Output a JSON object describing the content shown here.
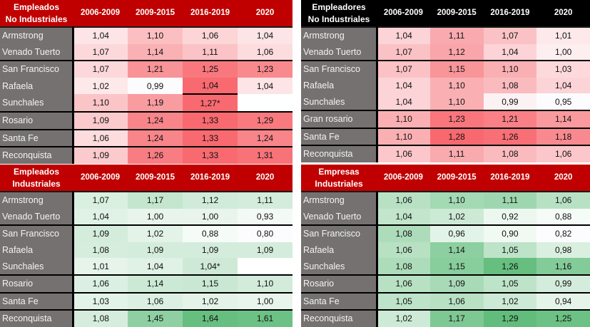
{
  "colors": {
    "header_red": "#c00000",
    "header_black": "#000000",
    "label_bg": "#767171"
  },
  "tables": [
    {
      "title_line1": "Empleados",
      "title_line2": "No Industriales",
      "columns": [
        "2006-2009",
        "2009-2015",
        "2016-2019",
        "2020"
      ],
      "rows": [
        {
          "name": "Armstrong",
          "values": [
            "1,04",
            "1,10",
            "1,06",
            "1,04"
          ],
          "bg": [
            "#fde4e6",
            "#fbbfc2",
            "#fcd5d7",
            "#fde4e6"
          ]
        },
        {
          "name": "Venado Tuerto",
          "values": [
            "1,07",
            "1,14",
            "1,11",
            "1,06"
          ],
          "bg": [
            "#fdd8db",
            "#fab1b4",
            "#fbc3c6",
            "#fddcde"
          ]
        },
        {
          "name": "San Francisco",
          "values": [
            "1,07",
            "1,21",
            "1,25",
            "1,23"
          ],
          "bg": [
            "#fdd8db",
            "#f89397",
            "#f8787d",
            "#f88a8e"
          ]
        },
        {
          "name": "Rafaela",
          "values": [
            "1,02",
            "0,99",
            "1,04",
            "1,04"
          ],
          "bg": [
            "#fee9ea",
            "#fcfcff",
            "#f86a70",
            "#fde4e6"
          ]
        },
        {
          "name": "Sunchales",
          "values": [
            "1,10",
            "1,19",
            "1,27*",
            ""
          ],
          "bg": [
            "#fbc5c8",
            "#f99ca0",
            "#f86a70",
            "#ffffff"
          ]
        },
        {
          "name": "Rosario",
          "values": [
            "1,09",
            "1,24",
            "1,33",
            "1,29"
          ],
          "bg": [
            "#fbcacd",
            "#f8858a",
            "#f86a70",
            "#f87a7f"
          ]
        },
        {
          "name": "Santa Fe",
          "values": [
            "1,06",
            "1,24",
            "1,33",
            "1,24"
          ],
          "bg": [
            "#fddcde",
            "#f8858a",
            "#f86a70",
            "#f8858a"
          ]
        },
        {
          "name": "Reconquista",
          "values": [
            "1,09",
            "1,26",
            "1,33",
            "1,31"
          ],
          "bg": [
            "#fbcacd",
            "#f87d82",
            "#f86a70",
            "#f87378"
          ]
        }
      ]
    },
    {
      "title_line1": "Empleadores",
      "title_line2": "No Industriales",
      "columns": [
        "2006-2009",
        "2009-2015",
        "2016-2019",
        "2020"
      ],
      "rows": [
        {
          "name": "Armstrong",
          "values": [
            "1,04",
            "1,11",
            "1,07",
            "1,01"
          ],
          "bg": [
            "#fcd3d6",
            "#f9aaae",
            "#fbc2c5",
            "#fde8ea"
          ]
        },
        {
          "name": "Venado Tuerto",
          "values": [
            "1,07",
            "1,12",
            "1,04",
            "1,00"
          ],
          "bg": [
            "#fbc2c5",
            "#f9a5a9",
            "#fcd3d6",
            "#fdeef0"
          ]
        },
        {
          "name": "San Francisco",
          "values": [
            "1,07",
            "1,15",
            "1,10",
            "1,03"
          ],
          "bg": [
            "#fbc2c5",
            "#f89599",
            "#fab0b3",
            "#fdd9db"
          ]
        },
        {
          "name": "Rafaela",
          "values": [
            "1,04",
            "1,10",
            "1,08",
            "1,04"
          ],
          "bg": [
            "#fcd3d6",
            "#fab0b3",
            "#fabbbe",
            "#fcd3d6"
          ]
        },
        {
          "name": "Sunchales",
          "values": [
            "1,04",
            "1,10",
            "0,99",
            "0,95"
          ],
          "bg": [
            "#fcd3d6",
            "#fab0b3",
            "#fdf2f3",
            "#fcfcff"
          ]
        },
        {
          "name": "Gran rosario",
          "values": [
            "1,10",
            "1,23",
            "1,21",
            "1,14"
          ],
          "bg": [
            "#fab0b3",
            "#f8767c",
            "#f88086",
            "#f99a9e"
          ]
        },
        {
          "name": "Santa Fe",
          "values": [
            "1,10",
            "1,28",
            "1,26",
            "1,18"
          ],
          "bg": [
            "#fab0b3",
            "#f8696f",
            "#f86f75",
            "#f88a8f"
          ]
        },
        {
          "name": "Reconquista",
          "values": [
            "1,06",
            "1,11",
            "1,08",
            "1,06"
          ],
          "bg": [
            "#fbc7ca",
            "#f9aaae",
            "#fabbbe",
            "#fbc7ca"
          ]
        }
      ]
    },
    {
      "title_line1": "Empleados",
      "title_line2": "Industriales",
      "columns": [
        "2006-2009",
        "2009-2015",
        "2016-2019",
        "2020"
      ],
      "rows": [
        {
          "name": "Armstrong",
          "values": [
            "1,07",
            "1,17",
            "1,12",
            "1,11"
          ],
          "bg": [
            "#d9efe0",
            "#c4e6cf",
            "#d0ebd9",
            "#d3ecdb"
          ]
        },
        {
          "name": "Venado Tuerto",
          "values": [
            "1,04",
            "1,00",
            "1,00",
            "0,93"
          ],
          "bg": [
            "#e0f2e6",
            "#e9f5ec",
            "#e9f5ec",
            "#f3f9f5"
          ]
        },
        {
          "name": "San Francisco",
          "values": [
            "1,09",
            "1,02",
            "0,88",
            "0,80"
          ],
          "bg": [
            "#d4ecdc",
            "#e3f3e8",
            "#f5fbf7",
            "#fcfcff"
          ]
        },
        {
          "name": "Rafaela",
          "values": [
            "1,08",
            "1,09",
            "1,09",
            "1,09"
          ],
          "bg": [
            "#d6eddd",
            "#d4ecdc",
            "#d4ecdc",
            "#d4ecdc"
          ]
        },
        {
          "name": "Sunchales",
          "values": [
            "1,01",
            "1,04",
            "1,04*",
            ""
          ],
          "bg": [
            "#e6f4ea",
            "#e0f2e6",
            "#cfe9d7",
            "#ffffff"
          ]
        },
        {
          "name": "Rosario",
          "values": [
            "1,06",
            "1,14",
            "1,15",
            "1,10"
          ],
          "bg": [
            "#dbf0e2",
            "#cce9d5",
            "#c9e7d3",
            "#d2ebda"
          ]
        },
        {
          "name": "Santa Fe",
          "values": [
            "1,03",
            "1,06",
            "1,02",
            "1,00"
          ],
          "bg": [
            "#e2f3e7",
            "#dbf0e2",
            "#e3f3e8",
            "#e9f5ec"
          ]
        },
        {
          "name": "Reconquista",
          "values": [
            "1,08",
            "1,45",
            "1,64",
            "1,61"
          ],
          "bg": [
            "#d6eddd",
            "#8fd0a3",
            "#66be7f",
            "#6cc184"
          ]
        }
      ]
    },
    {
      "title_line1": "Empresas",
      "title_line2": "Industriales",
      "columns": [
        "2006-2009",
        "2009-2015",
        "2016-2019",
        "2020"
      ],
      "rows": [
        {
          "name": "Armstrong",
          "values": [
            "1,06",
            "1,10",
            "1,11",
            "1,06"
          ],
          "bg": [
            "#b8e1c4",
            "#a3d9b3",
            "#9ed7af",
            "#b8e1c4"
          ]
        },
        {
          "name": "Venado Tuerto",
          "values": [
            "1,04",
            "1,02",
            "0,92",
            "0,88"
          ],
          "bg": [
            "#c2e5cc",
            "#cdead6",
            "#ecf7ef",
            "#f5fbf7"
          ]
        },
        {
          "name": "San Francisco",
          "values": [
            "1,08",
            "0,96",
            "0,90",
            "0,82"
          ],
          "bg": [
            "#addcbb",
            "#e2f3e7",
            "#f1f9f3",
            "#fcfcff"
          ]
        },
        {
          "name": "Rafaela",
          "values": [
            "1,06",
            "1,14",
            "1,05",
            "0,98"
          ],
          "bg": [
            "#b8e1c4",
            "#8dcfa0",
            "#bde3c8",
            "#d9efe0"
          ]
        },
        {
          "name": "Sunchales",
          "values": [
            "1,08",
            "1,15",
            "1,26",
            "1,16"
          ],
          "bg": [
            "#addcbb",
            "#88cd9c",
            "#66be7f",
            "#83cb98"
          ]
        },
        {
          "name": "Rosario",
          "values": [
            "1,06",
            "1,09",
            "1,05",
            "0,99"
          ],
          "bg": [
            "#b8e1c4",
            "#a8dab7",
            "#bde3c8",
            "#d4ecdc"
          ]
        },
        {
          "name": "Santa Fe",
          "values": [
            "1,05",
            "1,06",
            "1,02",
            "0,94"
          ],
          "bg": [
            "#bde3c8",
            "#b8e1c4",
            "#cdead6",
            "#e5f4e9"
          ]
        },
        {
          "name": "Reconquista",
          "values": [
            "1,02",
            "1,17",
            "1,29",
            "1,25"
          ],
          "bg": [
            "#cdead6",
            "#7ec894",
            "#62bd7c",
            "#6cc184"
          ]
        }
      ]
    }
  ]
}
